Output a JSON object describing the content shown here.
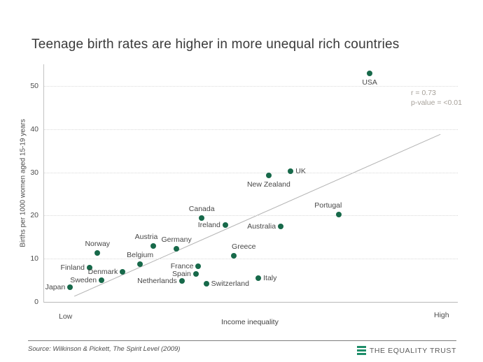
{
  "chart_data": {
    "type": "scatter",
    "title": "Teenage birth rates are higher in more unequal rich countries",
    "xlabel": "Income inequality",
    "x_low_label": "Low",
    "x_high_label": "High",
    "ylabel": "Births per 1000 women aged 15-19 years",
    "ylim": [
      0,
      55
    ],
    "yticks": [
      0,
      10,
      20,
      30,
      40,
      50
    ],
    "grid": "dotted-horizontal",
    "legend": "none",
    "stats": {
      "r": "r = 0.73",
      "p": "p-value = <0.01"
    },
    "trendline": {
      "x1": 0.073,
      "y1": 1.3,
      "x2": 0.958,
      "y2": 38.8
    },
    "points": [
      {
        "label": "Japan",
        "x": 0.063,
        "y": 3.4,
        "label_pos": "left"
      },
      {
        "label": "Finland",
        "x": 0.11,
        "y": 7.9,
        "label_pos": "left"
      },
      {
        "label": "Norway",
        "x": 0.129,
        "y": 11.3,
        "label_pos": "above"
      },
      {
        "label": "Sweden",
        "x": 0.139,
        "y": 5.0,
        "label_pos": "left"
      },
      {
        "label": "Denmark",
        "x": 0.19,
        "y": 7.0,
        "label_pos": "left"
      },
      {
        "label": "Belgium",
        "x": 0.232,
        "y": 8.7,
        "label_pos": "above"
      },
      {
        "label": "Austria",
        "x": 0.264,
        "y": 12.9,
        "label_pos": "above",
        "dx": -10
      },
      {
        "label": "Germany",
        "x": 0.32,
        "y": 12.3,
        "label_pos": "above"
      },
      {
        "label": "Netherlands",
        "x": 0.333,
        "y": 4.8,
        "label_pos": "left"
      },
      {
        "label": "Spain",
        "x": 0.367,
        "y": 6.5,
        "label_pos": "left"
      },
      {
        "label": "France",
        "x": 0.373,
        "y": 8.2,
        "label_pos": "left"
      },
      {
        "label": "Canada",
        "x": 0.381,
        "y": 19.4,
        "label_pos": "above"
      },
      {
        "label": "Switzerland",
        "x": 0.392,
        "y": 4.2,
        "label_pos": "right"
      },
      {
        "label": "Ireland",
        "x": 0.438,
        "y": 17.8,
        "label_pos": "left"
      },
      {
        "label": "Greece",
        "x": 0.459,
        "y": 10.7,
        "label_pos": "above",
        "dx": 14
      },
      {
        "label": "Italy",
        "x": 0.518,
        "y": 5.5,
        "label_pos": "right"
      },
      {
        "label": "New Zealand",
        "x": 0.543,
        "y": 29.3,
        "label_pos": "below"
      },
      {
        "label": "Australia",
        "x": 0.572,
        "y": 17.5,
        "label_pos": "left"
      },
      {
        "label": "UK",
        "x": 0.596,
        "y": 30.3,
        "label_pos": "right"
      },
      {
        "label": "Portugal",
        "x": 0.712,
        "y": 20.2,
        "label_pos": "above",
        "dx": -15
      },
      {
        "label": "USA",
        "x": 0.787,
        "y": 52.9,
        "label_pos": "below"
      }
    ],
    "colors": {
      "point": "#17694a",
      "trend": "#b3b3b3",
      "logo_green": "#1e8d69"
    }
  },
  "footer": {
    "source": "Source: Wilkinson & Pickett, The Spirit Level (2009)",
    "logo_text": "THE EQUALITY TRUST"
  }
}
